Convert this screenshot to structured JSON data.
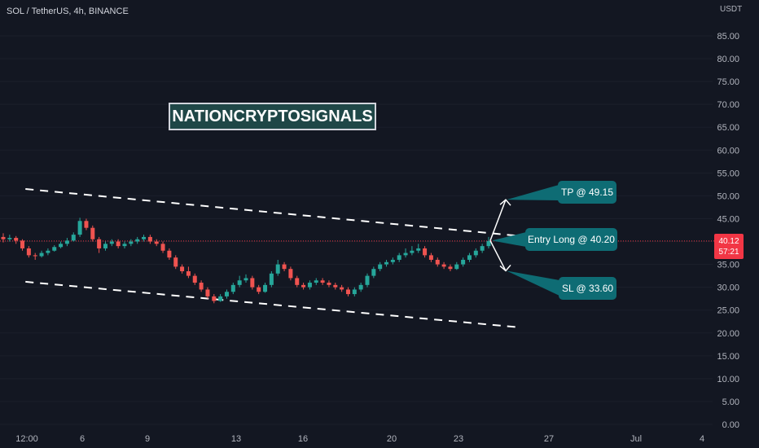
{
  "header": {
    "symbol": "SOL / TetherUS, 4h, BINANCE",
    "currency": "USDT"
  },
  "watermark": "NATIONCRYPTOSIGNALS",
  "callouts": {
    "tp": "TP @ 49.15",
    "entry": "Entry Long @ 40.20",
    "sl": "SL @ 33.60"
  },
  "price_tag": {
    "price": "40.12",
    "timer": "57:21"
  },
  "colors": {
    "background": "#131722",
    "up": "#26a69a",
    "down": "#ef5350",
    "callout": "#0e6c74",
    "price_tag": "#f23645",
    "channel": "#ffffff"
  },
  "chart_data": {
    "type": "candlestick",
    "title": "SOL / TetherUS, 4h, BINANCE",
    "y_axis": {
      "unit": "USDT",
      "ylim": [
        0,
        88
      ],
      "ticks": [
        0,
        5,
        10,
        15,
        20,
        25,
        30,
        35,
        40,
        45,
        50,
        55,
        60,
        65,
        70,
        75,
        80,
        85
      ],
      "tick_labels": [
        "0.00",
        "5.00",
        "10.00",
        "15.00",
        "20.00",
        "25.00",
        "30.00",
        "35.00",
        "",
        "45.00",
        "50.00",
        "55.00",
        "60.00",
        "65.00",
        "70.00",
        "75.00",
        "80.00",
        "85.00"
      ]
    },
    "x_axis": {
      "tick_labels": [
        "12:00",
        "6",
        "9",
        "13",
        "16",
        "20",
        "23",
        "27",
        "Jul",
        "4"
      ]
    },
    "last_price": 40.12,
    "close_path": [
      40.5,
      40.8,
      40.2,
      38.5,
      37.0,
      36.8,
      37.5,
      38.0,
      38.8,
      39.5,
      40.2,
      41.5,
      44.5,
      43.0,
      40.5,
      38.5,
      39.5,
      40.0,
      39.0,
      39.5,
      40.0,
      40.5,
      41.0,
      40.0,
      39.5,
      38.0,
      36.5,
      34.5,
      33.5,
      32.5,
      31.0,
      29.5,
      28.0,
      27.0,
      28.0,
      29.0,
      30.5,
      31.5,
      32.0,
      30.0,
      29.0,
      30.5,
      33.0,
      35.0,
      34.0,
      32.0,
      30.5,
      30.0,
      31.0,
      31.5,
      31.0,
      30.5,
      30.0,
      29.5,
      28.5,
      29.5,
      30.5,
      32.5,
      34.0,
      35.0,
      35.5,
      36.0,
      37.0,
      37.5,
      38.0,
      38.5,
      37.0,
      36.0,
      35.0,
      34.5,
      34.0,
      35.0,
      36.0,
      37.0,
      38.0,
      39.0,
      40.12
    ],
    "candles": [
      {
        "o": 41.0,
        "h": 41.8,
        "l": 39.8,
        "c": 40.5
      },
      {
        "o": 40.5,
        "h": 41.5,
        "l": 40.0,
        "c": 40.8
      },
      {
        "o": 40.8,
        "h": 41.2,
        "l": 39.5,
        "c": 40.2
      },
      {
        "o": 40.2,
        "h": 40.5,
        "l": 38.0,
        "c": 38.5
      },
      {
        "o": 38.5,
        "h": 39.0,
        "l": 36.5,
        "c": 37.0
      },
      {
        "o": 37.0,
        "h": 37.5,
        "l": 36.0,
        "c": 36.8
      },
      {
        "o": 36.8,
        "h": 38.0,
        "l": 36.5,
        "c": 37.5
      },
      {
        "o": 37.5,
        "h": 38.5,
        "l": 37.0,
        "c": 38.0
      },
      {
        "o": 38.0,
        "h": 39.2,
        "l": 37.8,
        "c": 38.8
      },
      {
        "o": 38.8,
        "h": 40.0,
        "l": 38.5,
        "c": 39.5
      },
      {
        "o": 39.5,
        "h": 40.8,
        "l": 39.0,
        "c": 40.2
      },
      {
        "o": 40.2,
        "h": 42.0,
        "l": 40.0,
        "c": 41.5
      },
      {
        "o": 41.5,
        "h": 45.2,
        "l": 41.0,
        "c": 44.5
      },
      {
        "o": 44.5,
        "h": 45.0,
        "l": 42.5,
        "c": 43.0
      },
      {
        "o": 43.0,
        "h": 43.5,
        "l": 40.0,
        "c": 40.5
      },
      {
        "o": 40.5,
        "h": 41.0,
        "l": 37.5,
        "c": 38.5
      },
      {
        "o": 38.5,
        "h": 40.0,
        "l": 38.0,
        "c": 39.5
      },
      {
        "o": 39.5,
        "h": 40.5,
        "l": 39.0,
        "c": 40.0
      },
      {
        "o": 40.0,
        "h": 40.5,
        "l": 38.5,
        "c": 39.0
      },
      {
        "o": 39.0,
        "h": 40.0,
        "l": 38.5,
        "c": 39.5
      },
      {
        "o": 39.5,
        "h": 40.5,
        "l": 39.0,
        "c": 40.0
      },
      {
        "o": 40.0,
        "h": 41.0,
        "l": 39.5,
        "c": 40.5
      },
      {
        "o": 40.5,
        "h": 41.5,
        "l": 40.0,
        "c": 41.0
      },
      {
        "o": 41.0,
        "h": 41.5,
        "l": 39.5,
        "c": 40.0
      },
      {
        "o": 40.0,
        "h": 40.5,
        "l": 39.0,
        "c": 39.5
      },
      {
        "o": 39.5,
        "h": 40.0,
        "l": 37.5,
        "c": 38.0
      },
      {
        "o": 38.0,
        "h": 38.5,
        "l": 36.0,
        "c": 36.5
      },
      {
        "o": 36.5,
        "h": 37.0,
        "l": 34.0,
        "c": 34.5
      },
      {
        "o": 34.5,
        "h": 35.0,
        "l": 33.0,
        "c": 33.5
      },
      {
        "o": 33.5,
        "h": 34.5,
        "l": 32.0,
        "c": 32.5
      },
      {
        "o": 32.5,
        "h": 33.0,
        "l": 30.5,
        "c": 31.0
      },
      {
        "o": 31.0,
        "h": 31.5,
        "l": 29.0,
        "c": 29.5
      },
      {
        "o": 29.5,
        "h": 30.0,
        "l": 27.5,
        "c": 28.0
      },
      {
        "o": 28.0,
        "h": 28.5,
        "l": 26.5,
        "c": 27.0
      },
      {
        "o": 27.0,
        "h": 28.5,
        "l": 26.8,
        "c": 28.0
      },
      {
        "o": 28.0,
        "h": 29.5,
        "l": 27.5,
        "c": 29.0
      },
      {
        "o": 29.0,
        "h": 31.0,
        "l": 28.5,
        "c": 30.5
      },
      {
        "o": 30.5,
        "h": 32.5,
        "l": 30.0,
        "c": 31.5
      },
      {
        "o": 31.5,
        "h": 32.8,
        "l": 31.0,
        "c": 32.0
      },
      {
        "o": 32.0,
        "h": 32.5,
        "l": 29.5,
        "c": 30.0
      },
      {
        "o": 30.0,
        "h": 30.5,
        "l": 28.5,
        "c": 29.0
      },
      {
        "o": 29.0,
        "h": 31.0,
        "l": 28.8,
        "c": 30.5
      },
      {
        "o": 30.5,
        "h": 33.5,
        "l": 30.0,
        "c": 33.0
      },
      {
        "o": 33.0,
        "h": 36.0,
        "l": 32.5,
        "c": 35.0
      },
      {
        "o": 35.0,
        "h": 35.5,
        "l": 33.5,
        "c": 34.0
      },
      {
        "o": 34.0,
        "h": 34.5,
        "l": 31.5,
        "c": 32.0
      },
      {
        "o": 32.0,
        "h": 32.5,
        "l": 30.0,
        "c": 30.5
      },
      {
        "o": 30.5,
        "h": 31.0,
        "l": 29.5,
        "c": 30.0
      },
      {
        "o": 30.0,
        "h": 31.5,
        "l": 29.5,
        "c": 31.0
      },
      {
        "o": 31.0,
        "h": 32.0,
        "l": 30.5,
        "c": 31.5
      },
      {
        "o": 31.5,
        "h": 32.0,
        "l": 30.5,
        "c": 31.0
      },
      {
        "o": 31.0,
        "h": 31.5,
        "l": 30.0,
        "c": 30.5
      },
      {
        "o": 30.5,
        "h": 31.0,
        "l": 29.5,
        "c": 30.0
      },
      {
        "o": 30.0,
        "h": 30.5,
        "l": 29.0,
        "c": 29.5
      },
      {
        "o": 29.5,
        "h": 30.0,
        "l": 28.0,
        "c": 28.5
      },
      {
        "o": 28.5,
        "h": 30.0,
        "l": 28.0,
        "c": 29.5
      },
      {
        "o": 29.5,
        "h": 31.0,
        "l": 29.0,
        "c": 30.5
      },
      {
        "o": 30.5,
        "h": 33.0,
        "l": 30.0,
        "c": 32.5
      },
      {
        "o": 32.5,
        "h": 34.5,
        "l": 32.0,
        "c": 34.0
      },
      {
        "o": 34.0,
        "h": 35.5,
        "l": 33.5,
        "c": 35.0
      },
      {
        "o": 35.0,
        "h": 36.0,
        "l": 34.5,
        "c": 35.5
      },
      {
        "o": 35.5,
        "h": 36.5,
        "l": 35.0,
        "c": 36.0
      },
      {
        "o": 36.0,
        "h": 37.5,
        "l": 35.5,
        "c": 37.0
      },
      {
        "o": 37.0,
        "h": 38.5,
        "l": 36.5,
        "c": 37.5
      },
      {
        "o": 37.5,
        "h": 39.0,
        "l": 37.0,
        "c": 38.0
      },
      {
        "o": 38.0,
        "h": 39.5,
        "l": 37.5,
        "c": 38.5
      },
      {
        "o": 38.5,
        "h": 39.0,
        "l": 36.5,
        "c": 37.0
      },
      {
        "o": 37.0,
        "h": 37.5,
        "l": 35.5,
        "c": 36.0
      },
      {
        "o": 36.0,
        "h": 36.5,
        "l": 34.5,
        "c": 35.0
      },
      {
        "o": 35.0,
        "h": 35.5,
        "l": 34.0,
        "c": 34.5
      },
      {
        "o": 34.5,
        "h": 35.0,
        "l": 33.5,
        "c": 34.0
      },
      {
        "o": 34.0,
        "h": 35.5,
        "l": 33.8,
        "c": 35.0
      },
      {
        "o": 35.0,
        "h": 36.5,
        "l": 34.5,
        "c": 36.0
      },
      {
        "o": 36.0,
        "h": 37.5,
        "l": 35.5,
        "c": 37.0
      },
      {
        "o": 37.0,
        "h": 38.5,
        "l": 36.5,
        "c": 38.0
      },
      {
        "o": 38.0,
        "h": 39.5,
        "l": 37.5,
        "c": 39.0
      },
      {
        "o": 39.0,
        "h": 41.0,
        "l": 38.5,
        "c": 40.12
      }
    ],
    "channel": {
      "upper": [
        [
          -0.01,
          51.5
        ],
        [
          0.685,
          41.2
        ]
      ],
      "lower": [
        [
          -0.01,
          31.2
        ],
        [
          0.685,
          21.2
        ]
      ]
    },
    "trade_levels": {
      "take_profit": 49.15,
      "entry": 40.2,
      "stop_loss": 33.6
    }
  }
}
